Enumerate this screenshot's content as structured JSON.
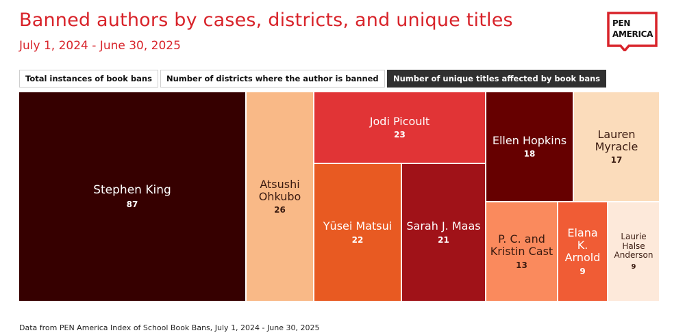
{
  "header": {
    "title": "Banned authors by cases, districts, and unique titles",
    "subtitle": "July 1, 2024 - June 30, 2025"
  },
  "logo": {
    "line1": "PEN",
    "line2": "AMERICA"
  },
  "tabs": [
    {
      "label": "Total instances of book bans",
      "active": false
    },
    {
      "label": "Number of districts where the author is banned",
      "active": false
    },
    {
      "label": "Number of unique titles affected by book bans",
      "active": true
    }
  ],
  "chart_data": {
    "type": "treemap",
    "title": "Banned authors by cases, districts, and unique titles",
    "metric": "Number of unique titles affected by book bans",
    "items": [
      {
        "name": "Stephen King",
        "value": 87,
        "color": "#360000"
      },
      {
        "name": "Atsushi Ohkubo",
        "value": 26,
        "color": "#f9b987"
      },
      {
        "name": "Jodi Picoult",
        "value": 23,
        "color": "#e13436"
      },
      {
        "name": "Yūsei Matsui",
        "value": 22,
        "color": "#e85a22"
      },
      {
        "name": "Sarah J. Maas",
        "value": 21,
        "color": "#a01218"
      },
      {
        "name": "Ellen Hopkins",
        "value": 18,
        "color": "#660000"
      },
      {
        "name": "Lauren Myracle",
        "value": 17,
        "color": "#fbdcbb"
      },
      {
        "name": "P. C. and Kristin Cast",
        "value": 13,
        "color": "#fa8a5d"
      },
      {
        "name": "Elana K. Arnold",
        "value": 9,
        "color": "#f05c35"
      },
      {
        "name": "Laurie Halse Anderson",
        "value": 9,
        "color": "#fde9da"
      }
    ]
  },
  "footer": "Data from PEN America Index of School Book Bans, July 1, 2024 - June 30, 2025"
}
